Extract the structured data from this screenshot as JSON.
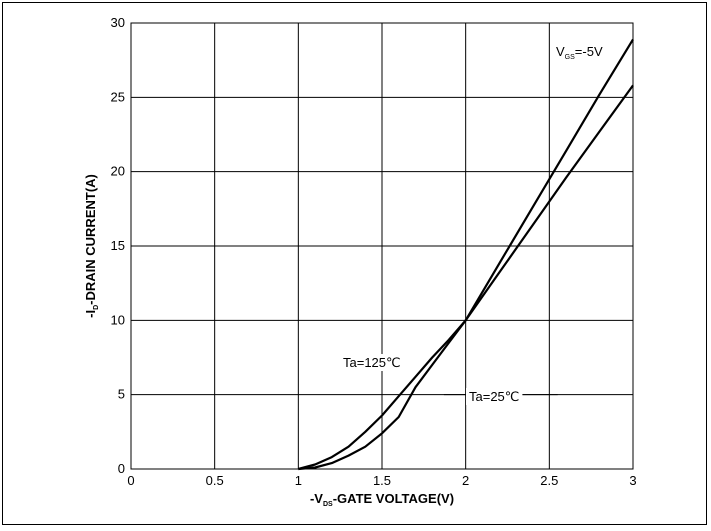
{
  "chart_data": {
    "type": "line",
    "title": "",
    "x": {
      "label_prefix": "-V",
      "label_sub": "DS",
      "label_suffix": "-GATE VOLTAGE(V)",
      "lim": [
        0,
        3
      ],
      "ticks": [
        0,
        0.5,
        1,
        1.5,
        2,
        2.5,
        3
      ],
      "tick_labels": [
        "0",
        "0.5",
        "1",
        "1.5",
        "2",
        "2.5",
        "3"
      ]
    },
    "y": {
      "label_prefix": "-I",
      "label_sub": "D",
      "label_suffix": "-DRAIN CURRENT(A)",
      "lim": [
        0,
        30
      ],
      "ticks": [
        0,
        5,
        10,
        15,
        20,
        25,
        30
      ],
      "tick_labels": [
        "0",
        "5",
        "10",
        "15",
        "20",
        "25",
        "30"
      ]
    },
    "grid": true,
    "annotation": {
      "prefix": "V",
      "sub": "GS",
      "suffix": "=-5V"
    },
    "series": [
      {
        "name": "Ta=125℃",
        "x": [
          1.0,
          1.1,
          1.2,
          1.3,
          1.4,
          1.5,
          1.6,
          1.7,
          1.8,
          1.9,
          2.0,
          2.2,
          2.4,
          2.6,
          2.8,
          3.0
        ],
        "y": [
          0,
          0.3,
          0.8,
          1.5,
          2.5,
          3.6,
          4.9,
          6.2,
          7.5,
          8.7,
          10.0,
          13.2,
          16.4,
          19.6,
          22.7,
          25.8
        ]
      },
      {
        "name": "Ta=25℃",
        "x": [
          1.0,
          1.1,
          1.2,
          1.3,
          1.4,
          1.5,
          1.6,
          1.7,
          1.8,
          1.9,
          2.0,
          2.2,
          2.4,
          2.6,
          2.8,
          3.0
        ],
        "y": [
          0,
          0.1,
          0.4,
          0.9,
          1.5,
          2.4,
          3.5,
          5.5,
          7.0,
          8.5,
          10.0,
          13.8,
          17.6,
          21.4,
          25.2,
          28.9
        ]
      }
    ]
  }
}
